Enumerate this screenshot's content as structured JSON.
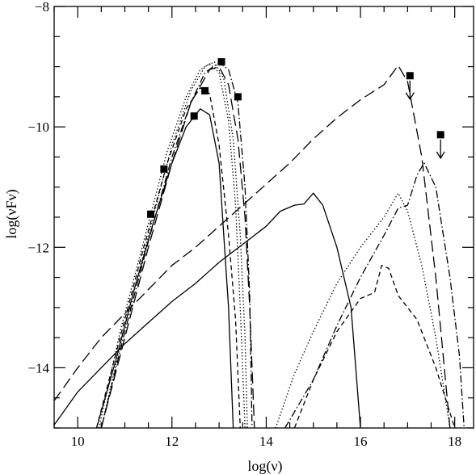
{
  "chart_data": {
    "type": "line",
    "title": "",
    "xlabel": "log(ν)",
    "ylabel": "log(νFν)",
    "xlim": [
      9.5,
      18.4
    ],
    "ylim": [
      -15,
      -8
    ],
    "x_ticks": [
      10,
      12,
      14,
      16,
      18
    ],
    "y_ticks": [
      -8,
      -10,
      -12,
      -14
    ],
    "x_tick_labels": [
      "10",
      "12",
      "14",
      "16",
      "18"
    ],
    "y_tick_labels": [
      "−8",
      "−10",
      "−12",
      "−14"
    ],
    "grid": false,
    "legend": "none",
    "series": [
      {
        "style": "solid",
        "points": [
          [
            9.5,
            -14.95
          ],
          [
            10.0,
            -14.4
          ],
          [
            10.5,
            -14.0
          ],
          [
            11.0,
            -13.6
          ],
          [
            11.5,
            -13.25
          ],
          [
            12.0,
            -12.9
          ],
          [
            12.5,
            -12.6
          ],
          [
            13.0,
            -12.25
          ],
          [
            13.5,
            -11.95
          ],
          [
            14.0,
            -11.65
          ],
          [
            14.3,
            -11.4
          ],
          [
            14.6,
            -11.3
          ],
          [
            14.8,
            -11.28
          ],
          [
            15.0,
            -11.1
          ],
          [
            15.2,
            -11.3
          ],
          [
            15.5,
            -12.0
          ],
          [
            15.8,
            -13.0
          ],
          [
            16.0,
            -15.0
          ]
        ]
      },
      {
        "style": "solid",
        "points": [
          [
            10.4,
            -15.0
          ],
          [
            10.8,
            -13.9
          ],
          [
            11.2,
            -12.7
          ],
          [
            11.6,
            -11.6
          ],
          [
            12.0,
            -10.6
          ],
          [
            12.3,
            -10.0
          ],
          [
            12.6,
            -9.7
          ],
          [
            12.8,
            -9.8
          ],
          [
            13.0,
            -10.6
          ],
          [
            13.1,
            -11.8
          ],
          [
            13.2,
            -13.0
          ],
          [
            13.3,
            -15.0
          ]
        ]
      },
      {
        "style": "long-dash",
        "points": [
          [
            9.5,
            -14.55
          ],
          [
            10.0,
            -14.0
          ],
          [
            10.5,
            -13.5
          ],
          [
            11.0,
            -13.1
          ],
          [
            11.5,
            -12.7
          ],
          [
            12.0,
            -12.3
          ],
          [
            12.5,
            -12.0
          ],
          [
            13.0,
            -11.65
          ],
          [
            13.5,
            -11.3
          ],
          [
            14.0,
            -10.95
          ],
          [
            14.5,
            -10.6
          ],
          [
            15.0,
            -10.2
          ],
          [
            15.5,
            -9.85
          ],
          [
            16.0,
            -9.55
          ],
          [
            16.5,
            -9.3
          ],
          [
            16.8,
            -8.98
          ],
          [
            17.0,
            -9.25
          ],
          [
            17.3,
            -10.5
          ],
          [
            17.6,
            -12.5
          ],
          [
            17.9,
            -15.0
          ]
        ]
      },
      {
        "style": "long-dash",
        "points": [
          [
            10.5,
            -15.0
          ],
          [
            11.0,
            -13.5
          ],
          [
            11.5,
            -12.0
          ],
          [
            12.0,
            -10.6
          ],
          [
            12.4,
            -9.6
          ],
          [
            12.8,
            -9.05
          ],
          [
            13.0,
            -9.0
          ],
          [
            13.2,
            -9.3
          ],
          [
            13.4,
            -10.2
          ],
          [
            13.55,
            -11.5
          ],
          [
            13.65,
            -13.0
          ],
          [
            13.75,
            -15.0
          ]
        ]
      },
      {
        "style": "short-dash",
        "points": [
          [
            10.4,
            -15.0
          ],
          [
            10.9,
            -13.5
          ],
          [
            11.4,
            -12.0
          ],
          [
            11.9,
            -10.6
          ],
          [
            12.3,
            -9.7
          ],
          [
            12.6,
            -9.35
          ],
          [
            12.8,
            -9.45
          ],
          [
            13.0,
            -10.3
          ],
          [
            13.2,
            -11.8
          ],
          [
            13.35,
            -13.2
          ],
          [
            13.45,
            -15.0
          ]
        ]
      },
      {
        "style": "short-dash",
        "points": [
          [
            14.6,
            -15.0
          ],
          [
            15.0,
            -14.2
          ],
          [
            15.5,
            -13.4
          ],
          [
            16.0,
            -12.85
          ],
          [
            16.3,
            -12.75
          ],
          [
            16.45,
            -12.3
          ],
          [
            16.6,
            -12.35
          ],
          [
            16.8,
            -12.8
          ],
          [
            17.2,
            -13.2
          ],
          [
            17.6,
            -14.0
          ],
          [
            18.0,
            -15.0
          ]
        ]
      },
      {
        "style": "dotted",
        "points": [
          [
            10.45,
            -15.0
          ],
          [
            10.9,
            -13.4
          ],
          [
            11.4,
            -11.9
          ],
          [
            11.9,
            -10.4
          ],
          [
            12.3,
            -9.5
          ],
          [
            12.6,
            -9.05
          ],
          [
            12.8,
            -8.95
          ],
          [
            13.0,
            -9.1
          ],
          [
            13.2,
            -9.9
          ],
          [
            13.35,
            -11.3
          ],
          [
            13.45,
            -13.0
          ],
          [
            13.55,
            -15.0
          ]
        ]
      },
      {
        "style": "dotted",
        "points": [
          [
            10.5,
            -15.0
          ],
          [
            11.0,
            -13.3
          ],
          [
            11.5,
            -11.8
          ],
          [
            12.0,
            -10.3
          ],
          [
            12.4,
            -9.4
          ],
          [
            12.7,
            -9.0
          ],
          [
            12.9,
            -8.92
          ],
          [
            13.1,
            -9.2
          ],
          [
            13.3,
            -10.2
          ],
          [
            13.45,
            -11.8
          ],
          [
            13.55,
            -13.5
          ],
          [
            13.6,
            -15.0
          ]
        ]
      },
      {
        "style": "dotted",
        "points": [
          [
            14.2,
            -15.0
          ],
          [
            14.6,
            -14.1
          ],
          [
            15.0,
            -13.4
          ],
          [
            15.5,
            -12.6
          ],
          [
            16.0,
            -12.0
          ],
          [
            16.5,
            -11.5
          ],
          [
            16.8,
            -11.1
          ],
          [
            17.0,
            -11.4
          ],
          [
            17.3,
            -12.3
          ],
          [
            17.6,
            -13.5
          ],
          [
            17.9,
            -15.0
          ]
        ]
      },
      {
        "style": "dash-dot",
        "points": [
          [
            10.5,
            -15.0
          ],
          [
            11.0,
            -13.4
          ],
          [
            11.5,
            -11.9
          ],
          [
            12.0,
            -10.5
          ],
          [
            12.4,
            -9.6
          ],
          [
            12.7,
            -9.1
          ],
          [
            13.0,
            -8.93
          ],
          [
            13.2,
            -9.05
          ],
          [
            13.4,
            -9.6
          ],
          [
            13.55,
            -11.0
          ],
          [
            13.65,
            -12.8
          ],
          [
            13.7,
            -15.0
          ]
        ]
      },
      {
        "style": "dash-dot",
        "points": [
          [
            14.4,
            -15.0
          ],
          [
            15.0,
            -14.2
          ],
          [
            15.5,
            -13.3
          ],
          [
            16.0,
            -12.5
          ],
          [
            16.5,
            -11.8
          ],
          [
            16.8,
            -11.35
          ],
          [
            17.0,
            -11.3
          ],
          [
            17.2,
            -10.8
          ],
          [
            17.35,
            -10.6
          ],
          [
            17.6,
            -11.0
          ],
          [
            17.9,
            -12.5
          ],
          [
            18.1,
            -13.8
          ],
          [
            18.2,
            -15.0
          ]
        ]
      }
    ],
    "observed_points": [
      {
        "x": 11.55,
        "y": -11.45
      },
      {
        "x": 11.83,
        "y": -10.7
      },
      {
        "x": 12.47,
        "y": -9.82
      },
      {
        "x": 12.7,
        "y": -9.4
      },
      {
        "x": 13.05,
        "y": -8.92
      },
      {
        "x": 13.4,
        "y": -9.5
      }
    ],
    "upper_limits": [
      {
        "x": 17.05,
        "y": -9.15
      },
      {
        "x": 17.7,
        "y": -10.13
      }
    ]
  }
}
